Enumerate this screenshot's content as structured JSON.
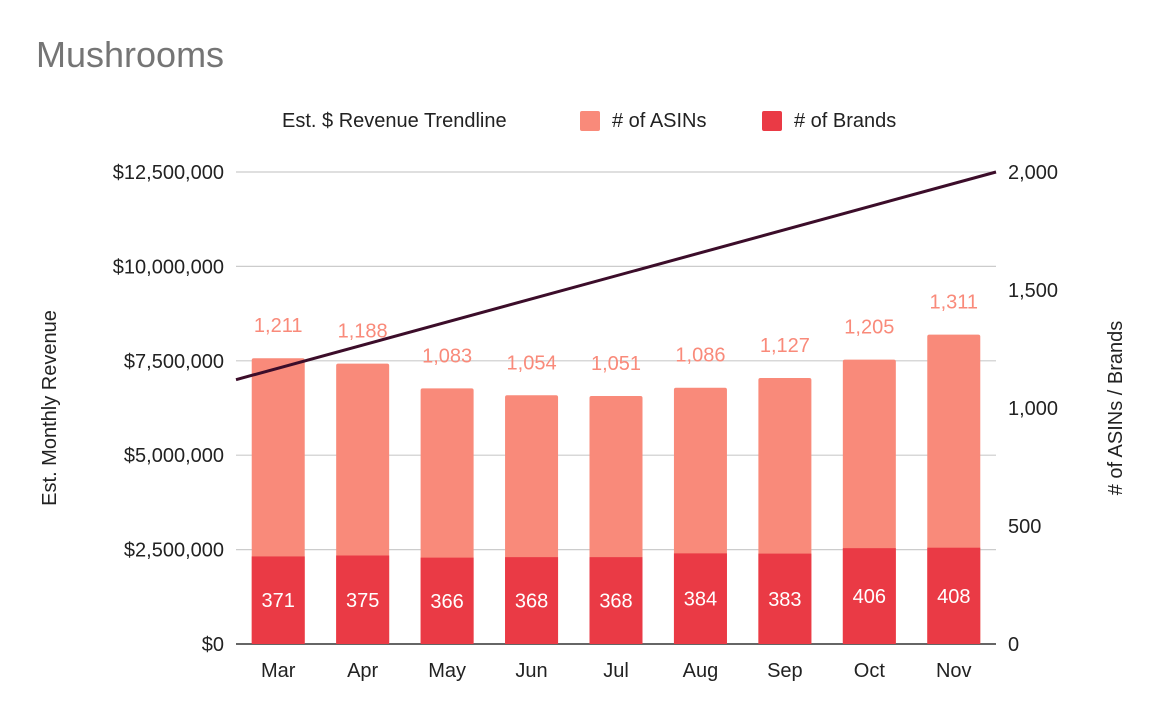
{
  "chart_data": {
    "type": "bar",
    "title": "Mushrooms",
    "categories": [
      "Mar",
      "Apr",
      "May",
      "Jun",
      "Jul",
      "Aug",
      "Sep",
      "Oct",
      "Nov"
    ],
    "series": [
      {
        "name": "# of ASINs",
        "axis": "right",
        "values": [
          1211,
          1188,
          1083,
          1054,
          1051,
          1086,
          1127,
          1205,
          1311
        ],
        "labels": [
          "1,211",
          "1,188",
          "1,083",
          "1,054",
          "1,051",
          "1,086",
          "1,127",
          "1,205",
          "1,311"
        ]
      },
      {
        "name": "# of Brands",
        "axis": "right",
        "values": [
          371,
          375,
          366,
          368,
          368,
          384,
          383,
          406,
          408
        ],
        "labels": [
          "371",
          "375",
          "366",
          "368",
          "368",
          "384",
          "383",
          "406",
          "408"
        ]
      }
    ],
    "trendline": {
      "name": "Est. $ Revenue Trendline",
      "axis": "left",
      "start": 7000000,
      "end": 12500000
    },
    "left_axis": {
      "label": "Est. Monthly Revenue",
      "ylim": [
        0,
        12500000
      ],
      "ticks": [
        "$0",
        "$2,500,000",
        "$5,000,000",
        "$7,500,000",
        "$10,000,000",
        "$12,500,000"
      ]
    },
    "right_axis": {
      "label": "# of ASINs / Brands",
      "ylim": [
        0,
        2000
      ],
      "ticks": [
        "0",
        "500",
        "1,000",
        "1,500",
        "2,000"
      ]
    },
    "legend": [
      "Est. $ Revenue Trendline",
      "# of ASINs",
      "# of Brands"
    ],
    "legend_position": "top",
    "grid": true
  },
  "colors": {
    "asins": "#f98a7a",
    "brands": "#ea3a45",
    "trendline": "#3c0d2a",
    "asin_label": "#f98a7a",
    "gridline": "#cccccc",
    "title": "#757575"
  }
}
